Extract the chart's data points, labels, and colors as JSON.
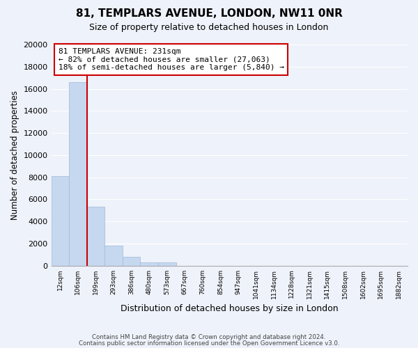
{
  "title": "81, TEMPLARS AVENUE, LONDON, NW11 0NR",
  "subtitle": "Size of property relative to detached houses in London",
  "xlabel": "Distribution of detached houses by size in London",
  "ylabel": "Number of detached properties",
  "bar_values": [
    8100,
    16600,
    5300,
    1800,
    800,
    300,
    300,
    0,
    0,
    0,
    0,
    0,
    0,
    0,
    0,
    0,
    0,
    0,
    0,
    0
  ],
  "bin_labels": [
    "12sqm",
    "106sqm",
    "199sqm",
    "293sqm",
    "386sqm",
    "480sqm",
    "573sqm",
    "667sqm",
    "760sqm",
    "854sqm",
    "947sqm",
    "1041sqm",
    "1134sqm",
    "1228sqm",
    "1321sqm",
    "1415sqm",
    "1508sqm",
    "1602sqm",
    "1695sqm",
    "1882sqm"
  ],
  "bar_color": "#c5d8f0",
  "bar_edge_color": "#a0b8d8",
  "vline_color": "#cc0000",
  "ylim": [
    0,
    20000
  ],
  "yticks": [
    0,
    2000,
    4000,
    6000,
    8000,
    10000,
    12000,
    14000,
    16000,
    18000,
    20000
  ],
  "annotation_title": "81 TEMPLARS AVENUE: 231sqm",
  "annotation_line1": "← 82% of detached houses are smaller (27,063)",
  "annotation_line2": "18% of semi-detached houses are larger (5,840) →",
  "annotation_box_color": "#ffffff",
  "annotation_box_edge": "#cc0000",
  "footer_line1": "Contains HM Land Registry data © Crown copyright and database right 2024.",
  "footer_line2": "Contains public sector information licensed under the Open Government Licence v3.0.",
  "bg_color": "#eef2fa"
}
